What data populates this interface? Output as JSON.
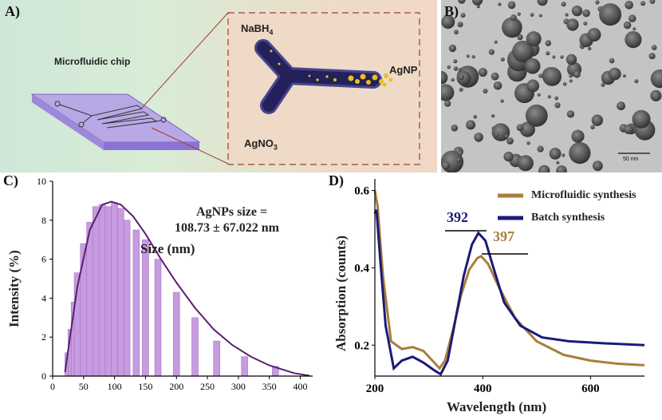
{
  "panels": {
    "a": {
      "label": "A)",
      "chip_label": "Microfluidic chip",
      "reagent_top": "NaBH",
      "reagent_top_sub": "4",
      "reagent_bottom": "AgNO",
      "reagent_bottom_sub": "3",
      "product": "AgNP"
    },
    "b": {
      "label": "B)",
      "scale_bar": "50 nm"
    },
    "c": {
      "label": "C)",
      "annotation_line1": "AgNPs size =",
      "annotation_line2": "108.73 ± 67.022 nm"
    },
    "d": {
      "label": "D)",
      "peak_batch": "392",
      "peak_micro": "397"
    }
  },
  "colors": {
    "bars": "#c79be0",
    "fit_line": "#5b1f6e",
    "batch": "#1a1a7a",
    "microfluidic": "#a97e3a",
    "channel": "#2b2566",
    "particles": "#e8c21c"
  },
  "chart_data": [
    {
      "type": "bar",
      "title": "",
      "xlabel": "Size (nm)",
      "ylabel": "Intensity (%)",
      "xlim": [
        0,
        420
      ],
      "ylim": [
        0,
        10
      ],
      "xticks": [
        0,
        50,
        100,
        150,
        200,
        250,
        300,
        350,
        400
      ],
      "yticks": [
        0,
        2,
        4,
        6,
        8,
        10
      ],
      "x": [
        25,
        30,
        35,
        40,
        50,
        60,
        70,
        80,
        90,
        100,
        110,
        120,
        135,
        150,
        170,
        200,
        230,
        265,
        310,
        360
      ],
      "values": [
        1.2,
        2.4,
        3.8,
        5.3,
        6.8,
        7.9,
        8.7,
        8.8,
        8.7,
        8.9,
        8.6,
        8.0,
        7.5,
        7.0,
        6.0,
        4.3,
        3.0,
        1.8,
        1.0,
        0.5
      ],
      "fit": {
        "x": [
          20,
          40,
          60,
          80,
          95,
          110,
          130,
          150,
          175,
          200,
          230,
          260,
          290,
          320,
          350,
          390,
          415
        ],
        "y": [
          0.2,
          4.6,
          7.5,
          8.8,
          8.95,
          8.8,
          8.2,
          7.3,
          6.0,
          4.8,
          3.5,
          2.4,
          1.6,
          1.0,
          0.55,
          0.15,
          0.02
        ]
      }
    },
    {
      "type": "line",
      "title": "",
      "xlabel": "Wavelength (nm)",
      "ylabel": "Absorption (counts)",
      "xlim": [
        200,
        700
      ],
      "ylim": [
        0.12,
        0.63
      ],
      "xticks": [
        200,
        400,
        600
      ],
      "yticks": [
        0.2,
        0.4,
        0.6
      ],
      "legend": [
        "Microfluidic synthesis",
        "Batch synthesis"
      ],
      "legend_position": "top-right",
      "series": [
        {
          "name": "Microfluidic synthesis",
          "x": [
            200,
            205,
            215,
            230,
            250,
            270,
            290,
            310,
            320,
            330,
            345,
            360,
            375,
            390,
            397,
            410,
            430,
            460,
            500,
            550,
            600,
            650,
            700
          ],
          "y": [
            0.6,
            0.56,
            0.38,
            0.21,
            0.19,
            0.195,
            0.185,
            0.155,
            0.14,
            0.16,
            0.24,
            0.33,
            0.395,
            0.425,
            0.43,
            0.41,
            0.35,
            0.27,
            0.21,
            0.175,
            0.16,
            0.152,
            0.148
          ]
        },
        {
          "name": "Batch synthesis",
          "x": [
            200,
            203,
            210,
            220,
            235,
            250,
            270,
            290,
            310,
            322,
            335,
            350,
            365,
            380,
            392,
            405,
            420,
            440,
            470,
            510,
            560,
            620,
            700
          ],
          "y": [
            0.54,
            0.55,
            0.42,
            0.25,
            0.14,
            0.16,
            0.17,
            0.155,
            0.135,
            0.125,
            0.16,
            0.27,
            0.38,
            0.46,
            0.49,
            0.47,
            0.4,
            0.31,
            0.25,
            0.22,
            0.21,
            0.205,
            0.2
          ]
        }
      ]
    }
  ]
}
